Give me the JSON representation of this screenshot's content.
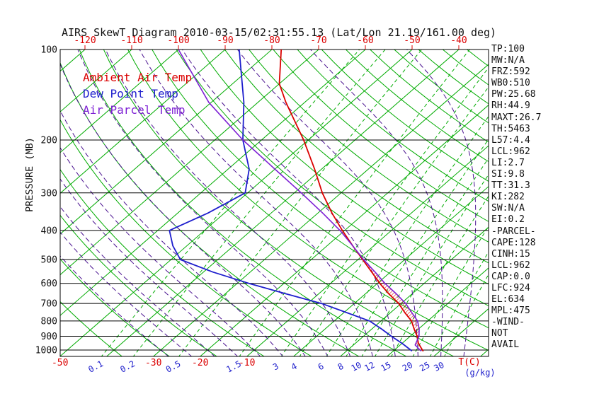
{
  "title": "AIRS SkewT Diagram 2010-03-15/02:31:55.13 (Lat/Lon 21.19/161.00 deg)",
  "legend": [
    {
      "label": "Ambient Air Temp",
      "color": "#db0000"
    },
    {
      "label": "Dew Point Temp",
      "color": "#1e1ecd"
    },
    {
      "label": "Air Parcel Temp",
      "color": "#7d1fd4"
    }
  ],
  "colors": {
    "temp_axis": "#db0000",
    "mixing_axis": "#2020cc",
    "grid_green": "#00ab00",
    "moist_purple": "#4a1290",
    "pressure_text": "#111111"
  },
  "axes": {
    "pressure_label": "PRESSURE (MB)",
    "bottom_temp_unit": "T(C)",
    "mixing_unit": "(g/kg)",
    "mixing_ticks": [
      0.1,
      0.2,
      0.5,
      1.5,
      3,
      4,
      6,
      8,
      10,
      12,
      15,
      20,
      25,
      30
    ]
  },
  "stats": [
    "TP:100",
    "MW:N/A",
    "FRZ:592",
    "WB0:510",
    "PW:25.68",
    "RH:44.9",
    "MAXT:26.7",
    "TH:5463",
    "L57:4.4",
    "LCL:962",
    "LI:2.7",
    "SI:9.8",
    "TT:31.3",
    "KI:282",
    "SW:N/A",
    "EI:0.2",
    "-PARCEL-",
    "CAPE:128",
    "CINH:15",
    "LCL:962",
    "CAP:0.0",
    "LFC:924",
    "EL:634",
    "MPL:475",
    "-WIND-",
    "NOT",
    "AVAIL"
  ],
  "chart_data": {
    "type": "line",
    "variant": "skew-t-log-p",
    "title": "AIRS SkewT Diagram 2010-03-15/02:31:55.13 (Lat/Lon 21.19/161.00 deg)",
    "y_axis": {
      "label": "PRESSURE (MB)",
      "scale": "log",
      "range": [
        100,
        1050
      ],
      "ticks": [
        100,
        200,
        300,
        400,
        500,
        600,
        700,
        800,
        900,
        1000
      ]
    },
    "x_axis": {
      "label": "T(C)",
      "top_ticks": [
        -120,
        -110,
        -100,
        -90,
        -80,
        -70,
        -60,
        -50,
        -40
      ],
      "bottom_ticks": [
        -50,
        -30,
        -20,
        -10
      ]
    },
    "series": [
      {
        "name": "Ambient Air Temp",
        "color": "#db0000",
        "width": 1.8,
        "points": [
          [
            1010,
            26.5
          ],
          [
            1000,
            26
          ],
          [
            950,
            23.5
          ],
          [
            900,
            21.5
          ],
          [
            850,
            19
          ],
          [
            800,
            16.5
          ],
          [
            750,
            13
          ],
          [
            700,
            9.5
          ],
          [
            650,
            5
          ],
          [
            600,
            0.5
          ],
          [
            550,
            -4
          ],
          [
            500,
            -9
          ],
          [
            450,
            -14.5
          ],
          [
            400,
            -20.5
          ],
          [
            350,
            -27
          ],
          [
            300,
            -34
          ],
          [
            250,
            -41.5
          ],
          [
            200,
            -51
          ],
          [
            150,
            -64
          ],
          [
            130,
            -70
          ],
          [
            100,
            -78
          ]
        ]
      },
      {
        "name": "Dew Point Temp",
        "color": "#1e1ecd",
        "width": 1.8,
        "points": [
          [
            1008,
            24
          ],
          [
            1000,
            23.5
          ],
          [
            950,
            20
          ],
          [
            900,
            16
          ],
          [
            850,
            12
          ],
          [
            800,
            7.5
          ],
          [
            750,
            0.5
          ],
          [
            700,
            -7
          ],
          [
            650,
            -17
          ],
          [
            600,
            -27.5
          ],
          [
            550,
            -38
          ],
          [
            500,
            -48
          ],
          [
            450,
            -53
          ],
          [
            400,
            -57.5
          ],
          [
            350,
            -53.5
          ],
          [
            300,
            -50.5
          ],
          [
            250,
            -55.5
          ],
          [
            200,
            -64
          ],
          [
            150,
            -73
          ],
          [
            100,
            -87
          ]
        ]
      },
      {
        "name": "Air Parcel Temp",
        "color": "#7d1fd4",
        "width": 1.6,
        "points": [
          [
            1008,
            26
          ],
          [
            1000,
            25.5
          ],
          [
            962,
            23.2
          ],
          [
            900,
            21.9
          ],
          [
            850,
            20.1
          ],
          [
            800,
            17.8
          ],
          [
            750,
            14.5
          ],
          [
            700,
            11
          ],
          [
            650,
            6.6
          ],
          [
            600,
            1.6
          ],
          [
            550,
            -3.3
          ],
          [
            500,
            -8.8
          ],
          [
            450,
            -14.5
          ],
          [
            400,
            -21
          ],
          [
            350,
            -29
          ],
          [
            300,
            -38.5
          ],
          [
            250,
            -50
          ],
          [
            200,
            -64
          ],
          [
            150,
            -80.5
          ],
          [
            100,
            -100
          ]
        ]
      }
    ],
    "hatch": {
      "between": [
        "Air Parcel Temp",
        "Ambient Air Temp"
      ],
      "pressure_range": [
        962,
        470
      ],
      "color": "#db0000"
    },
    "background": {
      "line_color": "#00ab00",
      "moist_color": "#4a1290",
      "isotherm_range": [
        -130,
        40
      ],
      "isotherm_step": 10,
      "dry_adiabats": {
        "from": -40,
        "to": 200,
        "step": 10
      },
      "moist_adiabats_thetaw_c": [
        -30,
        -25,
        -20,
        -15,
        -10,
        -5,
        0,
        5,
        10,
        15,
        20,
        25,
        30,
        35
      ],
      "mixing_lines": [
        0.1,
        0.2,
        0.5,
        1.5,
        3,
        4,
        6,
        8,
        10,
        12,
        15,
        20,
        25,
        30
      ]
    }
  }
}
